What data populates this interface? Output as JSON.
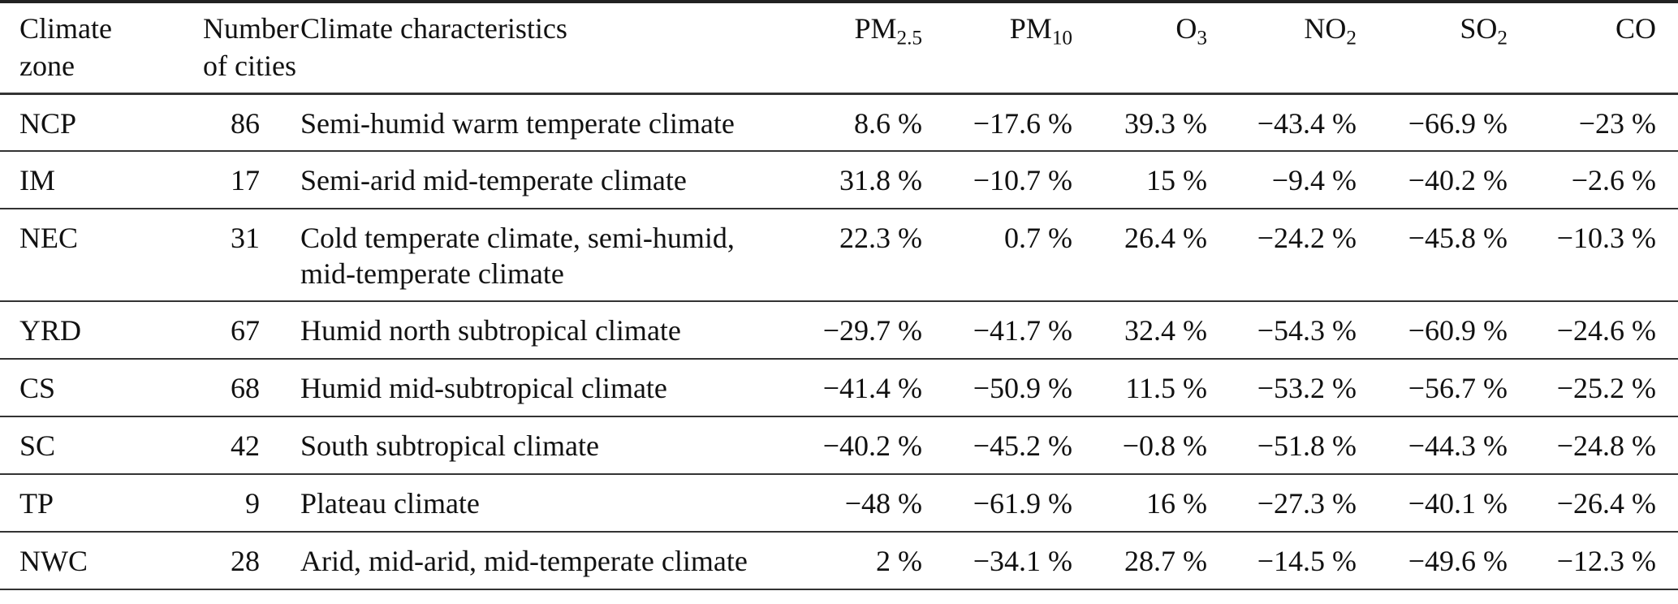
{
  "headers": {
    "zone": [
      "Climate",
      "zone"
    ],
    "cities": [
      "Number",
      "of cities"
    ],
    "characteristics": "Climate characteristics",
    "pollutants": [
      {
        "main": "PM",
        "sub": "2.5"
      },
      {
        "main": "PM",
        "sub": "10"
      },
      {
        "main": "O",
        "sub": "3"
      },
      {
        "main": "NO",
        "sub": "2"
      },
      {
        "main": "SO",
        "sub": "2"
      },
      {
        "main": "CO",
        "sub": ""
      }
    ]
  },
  "rows": [
    {
      "zone": "NCP",
      "cities": "86",
      "characteristics": [
        "Semi-humid warm temperate climate"
      ],
      "values": [
        "8.6 %",
        "−17.6 %",
        "39.3 %",
        "−43.4 %",
        "−66.9 %",
        "−23 %"
      ]
    },
    {
      "zone": "IM",
      "cities": "17",
      "characteristics": [
        "Semi-arid mid-temperate climate"
      ],
      "values": [
        "31.8 %",
        "−10.7 %",
        "15 %",
        "−9.4 %",
        "−40.2 %",
        "−2.6 %"
      ]
    },
    {
      "zone": "NEC",
      "cities": "31",
      "characteristics": [
        "Cold temperate climate, semi-humid,",
        "mid-temperate climate"
      ],
      "values": [
        "22.3 %",
        "0.7 %",
        "26.4 %",
        "−24.2 %",
        "−45.8 %",
        "−10.3 %"
      ]
    },
    {
      "zone": "YRD",
      "cities": "67",
      "characteristics": [
        "Humid north subtropical climate"
      ],
      "values": [
        "−29.7 %",
        "−41.7 %",
        "32.4 %",
        "−54.3 %",
        "−60.9 %",
        "−24.6 %"
      ]
    },
    {
      "zone": "CS",
      "cities": "68",
      "characteristics": [
        "Humid mid-subtropical climate"
      ],
      "values": [
        "−41.4 %",
        "−50.9 %",
        "11.5 %",
        "−53.2 %",
        "−56.7 %",
        "−25.2 %"
      ]
    },
    {
      "zone": "SC",
      "cities": "42",
      "characteristics": [
        "South subtropical climate"
      ],
      "values": [
        "−40.2 %",
        "−45.2 %",
        "−0.8 %",
        "−51.8 %",
        "−44.3 %",
        "−24.8 %"
      ]
    },
    {
      "zone": "TP",
      "cities": "9",
      "characteristics": [
        "Plateau climate"
      ],
      "values": [
        "−48 %",
        "−61.9 %",
        "16 %",
        "−27.3 %",
        "−40.1 %",
        "−26.4 %"
      ]
    },
    {
      "zone": "NWC",
      "cities": "28",
      "characteristics": [
        "Arid, mid-arid, mid-temperate climate"
      ],
      "values": [
        "2 %",
        "−34.1 %",
        "28.7 %",
        "−14.5 %",
        "−49.6 %",
        "−12.3 %"
      ]
    }
  ]
}
